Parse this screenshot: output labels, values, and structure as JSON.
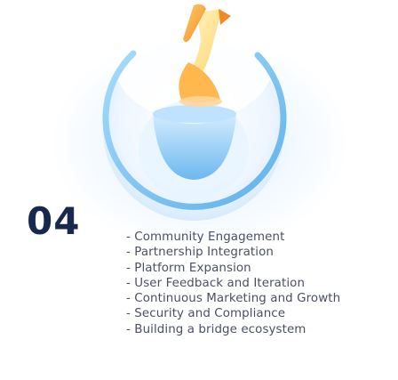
{
  "step": {
    "number": "04",
    "icon": "hand-holding-coin-icon",
    "items": [
      "- Community Engagement",
      "- Partnership Integration",
      "- Platform Expansion",
      "- User Feedback and Iteration",
      "- Continuous Marketing and Growth",
      "- Security and Compliance",
      "- Building a bridge ecosystem"
    ]
  },
  "colors": {
    "number": "#19284e",
    "text": "#4a4f62",
    "ring": "#7fc3f2",
    "hand": "#f5a623",
    "coin": "#ffe08a"
  }
}
